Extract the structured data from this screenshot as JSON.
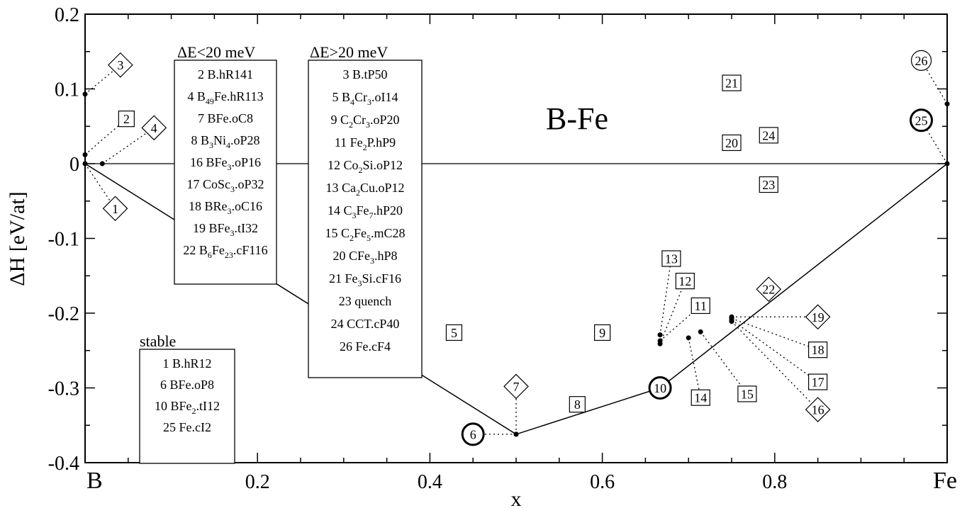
{
  "chart_data": {
    "type": "scatter",
    "title": "B-Fe",
    "xlabel": "x",
    "ylabel": "ΔH [eV/at]",
    "xlim": [
      0,
      1
    ],
    "ylim": [
      -0.4,
      0.2
    ],
    "x_ticks": [
      {
        "v": 0,
        "label": "B"
      },
      {
        "v": 0.2,
        "label": "0.2"
      },
      {
        "v": 0.4,
        "label": "0.4"
      },
      {
        "v": 0.6,
        "label": "0.6"
      },
      {
        "v": 0.8,
        "label": "0.8"
      },
      {
        "v": 1,
        "label": "Fe"
      }
    ],
    "y_ticks": [
      {
        "v": 0.2,
        "label": "0.2"
      },
      {
        "v": 0.1,
        "label": "0.1"
      },
      {
        "v": 0,
        "label": "0"
      },
      {
        "v": -0.1,
        "label": "-0.1"
      },
      {
        "v": -0.2,
        "label": "-0.2"
      },
      {
        "v": -0.3,
        "label": "-0.3"
      },
      {
        "v": -0.4,
        "label": "-0.4"
      }
    ],
    "hull": [
      [
        0,
        0
      ],
      [
        0.5,
        -0.362
      ],
      [
        0.667,
        -0.3
      ],
      [
        1,
        0
      ]
    ],
    "structures": [
      {
        "id": "1",
        "shape": "diamond",
        "label": [
          0.035,
          -0.06
        ],
        "point": [
          0,
          0
        ]
      },
      {
        "id": "2",
        "shape": "square",
        "label": [
          0.048,
          0.06
        ],
        "point": [
          0,
          0.012
        ]
      },
      {
        "id": "3",
        "shape": "diamond",
        "label": [
          0.041,
          0.132
        ],
        "point": [
          0,
          0.093
        ]
      },
      {
        "id": "4",
        "shape": "diamond",
        "label": [
          0.08,
          0.048
        ],
        "point": [
          0.02,
          0
        ]
      },
      {
        "id": "5",
        "shape": "square",
        "label": [
          0.428,
          -0.226
        ]
      },
      {
        "id": "6",
        "shape": "thick-circle",
        "label": [
          0.45,
          -0.362
        ],
        "point": [
          0.5,
          -0.362
        ]
      },
      {
        "id": "7",
        "shape": "diamond",
        "label": [
          0.5,
          -0.298
        ],
        "point": [
          0.5,
          -0.362
        ]
      },
      {
        "id": "8",
        "shape": "square",
        "label": [
          0.571,
          -0.322
        ]
      },
      {
        "id": "9",
        "shape": "square",
        "label": [
          0.6,
          -0.226
        ]
      },
      {
        "id": "10",
        "shape": "thick-circle",
        "label": [
          0.667,
          -0.3
        ]
      },
      {
        "id": "11",
        "shape": "square",
        "label": [
          0.714,
          -0.19
        ],
        "point": [
          0.667,
          -0.237
        ]
      },
      {
        "id": "12",
        "shape": "square",
        "label": [
          0.696,
          -0.157
        ],
        "point": [
          0.667,
          -0.241
        ]
      },
      {
        "id": "13",
        "shape": "square",
        "label": [
          0.68,
          -0.127
        ],
        "point": [
          0.667,
          -0.229
        ]
      },
      {
        "id": "14",
        "shape": "square",
        "label": [
          0.714,
          -0.313
        ],
        "point": [
          0.7,
          -0.233
        ]
      },
      {
        "id": "15",
        "shape": "square",
        "label": [
          0.768,
          -0.308
        ],
        "point": [
          0.714,
          -0.225
        ]
      },
      {
        "id": "16",
        "shape": "diamond",
        "label": [
          0.85,
          -0.329
        ],
        "point": [
          0.75,
          -0.211
        ]
      },
      {
        "id": "17",
        "shape": "square",
        "label": [
          0.85,
          -0.292
        ],
        "point": [
          0.75,
          -0.209
        ]
      },
      {
        "id": "18",
        "shape": "square",
        "label": [
          0.85,
          -0.249
        ],
        "point": [
          0.75,
          -0.207
        ]
      },
      {
        "id": "19",
        "shape": "diamond",
        "label": [
          0.85,
          -0.205
        ],
        "point": [
          0.75,
          -0.205
        ]
      },
      {
        "id": "20",
        "shape": "square",
        "label": [
          0.75,
          0.028
        ]
      },
      {
        "id": "21",
        "shape": "square",
        "label": [
          0.75,
          0.108
        ]
      },
      {
        "id": "22",
        "shape": "diamond",
        "label": [
          0.793,
          -0.168
        ]
      },
      {
        "id": "23",
        "shape": "square",
        "label": [
          0.793,
          -0.028
        ]
      },
      {
        "id": "24",
        "shape": "square",
        "label": [
          0.793,
          0.038
        ]
      },
      {
        "id": "25",
        "shape": "thick-circle",
        "label": [
          0.97,
          0.058
        ],
        "point": [
          1,
          0
        ]
      },
      {
        "id": "26",
        "shape": "circle",
        "label": [
          0.97,
          0.138
        ],
        "point": [
          1,
          0.08
        ]
      }
    ],
    "legends": [
      {
        "key": "low",
        "header": "ΔE<20 meV",
        "items": [
          [
            {
              "t": "2 B.hR141"
            }
          ],
          [
            {
              "t": "4 B"
            },
            {
              "t": "49",
              "s": true
            },
            {
              "t": "Fe.hR113"
            }
          ],
          [
            {
              "t": "7 BFe.oC8"
            }
          ],
          [
            {
              "t": "8 B"
            },
            {
              "t": "3",
              "s": true
            },
            {
              "t": "Ni"
            },
            {
              "t": "4",
              "s": true
            },
            {
              "t": ".oP28"
            }
          ],
          [
            {
              "t": "16 BFe"
            },
            {
              "t": "3",
              "s": true
            },
            {
              "t": ".oP16"
            }
          ],
          [
            {
              "t": "17 CoSc"
            },
            {
              "t": "3",
              "s": true
            },
            {
              "t": ".oP32"
            }
          ],
          [
            {
              "t": "18 BRe"
            },
            {
              "t": "3",
              "s": true
            },
            {
              "t": ".oC16"
            }
          ],
          [
            {
              "t": "19 BFe"
            },
            {
              "t": "3",
              "s": true
            },
            {
              "t": ".tI32"
            }
          ],
          [
            {
              "t": "22 B"
            },
            {
              "t": "6",
              "s": true
            },
            {
              "t": "Fe"
            },
            {
              "t": "23",
              "s": true
            },
            {
              "t": ".cF116"
            }
          ]
        ]
      },
      {
        "key": "high",
        "header": "ΔE>20 meV",
        "items": [
          [
            {
              "t": "3 B.tP50"
            }
          ],
          [
            {
              "t": "5 B"
            },
            {
              "t": "4",
              "s": true
            },
            {
              "t": "Cr"
            },
            {
              "t": "3",
              "s": true
            },
            {
              "t": ".oI14"
            }
          ],
          [
            {
              "t": "9 C"
            },
            {
              "t": "2",
              "s": true
            },
            {
              "t": "Cr"
            },
            {
              "t": "3",
              "s": true
            },
            {
              "t": ".oP20"
            }
          ],
          [
            {
              "t": "11 Fe"
            },
            {
              "t": "2",
              "s": true
            },
            {
              "t": "P.hP9"
            }
          ],
          [
            {
              "t": "12 Co"
            },
            {
              "t": "2",
              "s": true
            },
            {
              "t": "Si.oP12"
            }
          ],
          [
            {
              "t": "13 Ca"
            },
            {
              "t": "2",
              "s": true
            },
            {
              "t": "Cu.oP12"
            }
          ],
          [
            {
              "t": "14 C"
            },
            {
              "t": "3",
              "s": true
            },
            {
              "t": "Fe"
            },
            {
              "t": "7",
              "s": true
            },
            {
              "t": ".hP20"
            }
          ],
          [
            {
              "t": "15 C"
            },
            {
              "t": "2",
              "s": true
            },
            {
              "t": "Fe"
            },
            {
              "t": "5",
              "s": true
            },
            {
              "t": ".mC28"
            }
          ],
          [
            {
              "t": "20 CFe"
            },
            {
              "t": "3",
              "s": true
            },
            {
              "t": ".hP8"
            }
          ],
          [
            {
              "t": "21 Fe"
            },
            {
              "t": "3",
              "s": true
            },
            {
              "t": "Si.cF16"
            }
          ],
          [
            {
              "t": "23 quench"
            }
          ],
          [
            {
              "t": "24 CCT.cP40"
            }
          ],
          [
            {
              "t": "26 Fe.cF4"
            }
          ]
        ]
      },
      {
        "key": "stable",
        "header": "stable",
        "items": [
          [
            {
              "t": "1 B.hR12"
            }
          ],
          [
            {
              "t": "6 BFe.oP8"
            }
          ],
          [
            {
              "t": "10 BFe"
            },
            {
              "t": "2",
              "s": true
            },
            {
              "t": ".tI12"
            }
          ],
          [
            {
              "t": "25 Fe.cI2"
            }
          ]
        ]
      }
    ]
  }
}
